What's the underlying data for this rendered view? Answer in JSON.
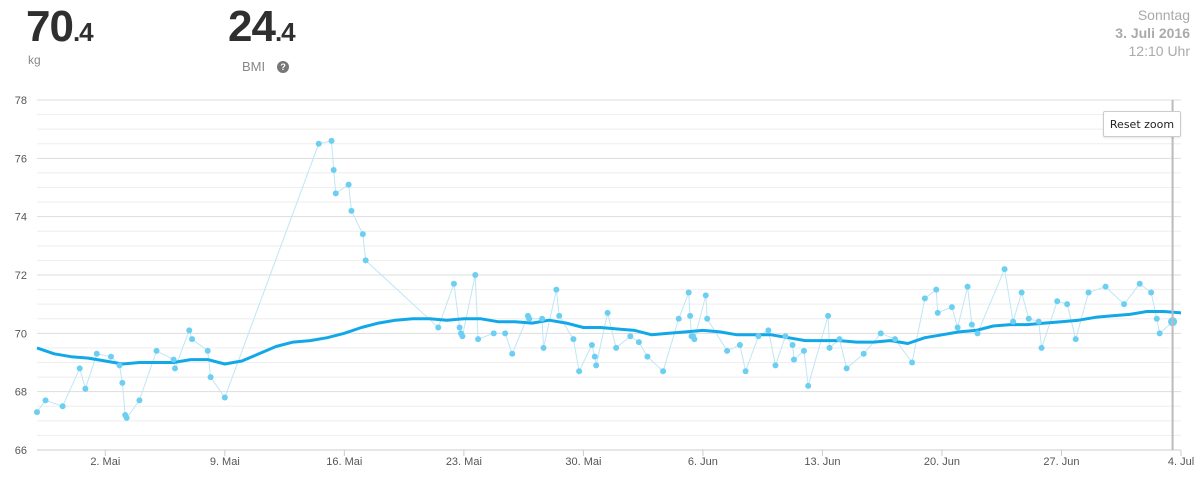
{
  "weight": {
    "int": "70",
    "dec": ".4",
    "unit": "kg"
  },
  "bmi": {
    "int": "24",
    "dec": ".4",
    "label": "BMI",
    "help_icon": "help-icon"
  },
  "date": {
    "weekday": "Sonntag",
    "date": "3. Juli 2016",
    "time": "12:10 Uhr"
  },
  "reset_zoom_label": "Reset zoom",
  "colors": {
    "points": "#6ccff2",
    "trend": "#12a8e8",
    "raw_line": "#bfe6f5",
    "grid": "#dddddd",
    "crosshair": "#bbbbbb"
  },
  "chart_data": {
    "type": "line",
    "xlabel": "",
    "ylabel": "",
    "ylim": [
      66,
      78
    ],
    "xlim": [
      "2016-04-28",
      "2016-07-04"
    ],
    "y_ticks": [
      66,
      68,
      70,
      72,
      74,
      76,
      78
    ],
    "x_ticks": [
      {
        "date": "2016-05-02",
        "label": "2. Mai"
      },
      {
        "date": "2016-05-09",
        "label": "9. Mai"
      },
      {
        "date": "2016-05-16",
        "label": "16. Mai"
      },
      {
        "date": "2016-05-23",
        "label": "23. Mai"
      },
      {
        "date": "2016-05-30",
        "label": "30. Mai"
      },
      {
        "date": "2016-06-06",
        "label": "6. Jun"
      },
      {
        "date": "2016-06-13",
        "label": "13. Jun"
      },
      {
        "date": "2016-06-20",
        "label": "20. Jun"
      },
      {
        "date": "2016-06-27",
        "label": "27. Jun"
      },
      {
        "date": "2016-07-04",
        "label": "4. Jul"
      }
    ],
    "grid": true,
    "series": [
      {
        "kind": "measurements",
        "points": [
          [
            "2016-04-28",
            67.3
          ],
          [
            "2016-04-28 12:00",
            67.7
          ],
          [
            "2016-04-29 12:00",
            67.5
          ],
          [
            "2016-04-30 12:00",
            68.8
          ],
          [
            "2016-04-30 20:00",
            68.1
          ],
          [
            "2016-05-01 12:00",
            69.3
          ],
          [
            "2016-05-02 08:00",
            69.2
          ],
          [
            "2016-05-02 20:00",
            68.9
          ],
          [
            "2016-05-03 00:00",
            68.3
          ],
          [
            "2016-05-03 04:00",
            67.2
          ],
          [
            "2016-05-03 06:00",
            67.1
          ],
          [
            "2016-05-04 00:00",
            67.7
          ],
          [
            "2016-05-05 00:00",
            69.4
          ],
          [
            "2016-05-06 00:00",
            69.1
          ],
          [
            "2016-05-06 02:00",
            68.8
          ],
          [
            "2016-05-06 22:00",
            70.1
          ],
          [
            "2016-05-07 02:00",
            69.8
          ],
          [
            "2016-05-08 00:00",
            69.4
          ],
          [
            "2016-05-08 04:00",
            68.5
          ],
          [
            "2016-05-09 00:00",
            67.8
          ],
          [
            "2016-05-14 12:00",
            76.5
          ],
          [
            "2016-05-15 06:00",
            76.6
          ],
          [
            "2016-05-15 09:00",
            75.6
          ],
          [
            "2016-05-15 12:00",
            74.8
          ],
          [
            "2016-05-16 06:00",
            75.1
          ],
          [
            "2016-05-16 10:00",
            74.2
          ],
          [
            "2016-05-17 02:00",
            73.4
          ],
          [
            "2016-05-17 06:00",
            72.5
          ],
          [
            "2016-05-21 12:00",
            70.2
          ],
          [
            "2016-05-22 10:00",
            71.7
          ],
          [
            "2016-05-22 18:00",
            70.2
          ],
          [
            "2016-05-22 20:00",
            70.0
          ],
          [
            "2016-05-22 22:00",
            69.9
          ],
          [
            "2016-05-23 16:00",
            72.0
          ],
          [
            "2016-05-23 20:00",
            69.8
          ],
          [
            "2016-05-24 18:00",
            70.0
          ],
          [
            "2016-05-25 10:00",
            70.0
          ],
          [
            "2016-05-25 20:00",
            69.3
          ],
          [
            "2016-05-26 18:00",
            70.6
          ],
          [
            "2016-05-26 20:00",
            70.5
          ],
          [
            "2016-05-27 14:00",
            70.5
          ],
          [
            "2016-05-27 16:00",
            69.5
          ],
          [
            "2016-05-28 10:00",
            71.5
          ],
          [
            "2016-05-28 14:00",
            70.6
          ],
          [
            "2016-05-29 10:00",
            69.8
          ],
          [
            "2016-05-29 18:00",
            68.7
          ],
          [
            "2016-05-30 12:00",
            69.6
          ],
          [
            "2016-05-30 16:00",
            69.2
          ],
          [
            "2016-05-30 18:00",
            68.9
          ],
          [
            "2016-05-31 10:00",
            70.7
          ],
          [
            "2016-05-31 22:00",
            69.5
          ],
          [
            "2016-06-01 18:00",
            69.9
          ],
          [
            "2016-06-02 06:00",
            69.7
          ],
          [
            "2016-06-02 18:00",
            69.2
          ],
          [
            "2016-06-03 16:00",
            68.7
          ],
          [
            "2016-06-04 14:00",
            70.5
          ],
          [
            "2016-06-05 04:00",
            71.4
          ],
          [
            "2016-06-05 06:00",
            70.6
          ],
          [
            "2016-06-05 08:00",
            69.9
          ],
          [
            "2016-06-05 10:00",
            69.9
          ],
          [
            "2016-06-05 12:00",
            69.8
          ],
          [
            "2016-06-06 04:00",
            71.3
          ],
          [
            "2016-06-06 06:00",
            70.5
          ],
          [
            "2016-06-07 10:00",
            69.4
          ],
          [
            "2016-06-08 04:00",
            69.6
          ],
          [
            "2016-06-08 12:00",
            68.7
          ],
          [
            "2016-06-09 06:00",
            69.9
          ],
          [
            "2016-06-09 20:00",
            70.1
          ],
          [
            "2016-06-10 06:00",
            68.9
          ],
          [
            "2016-06-10 20:00",
            69.9
          ],
          [
            "2016-06-11 06:00",
            69.6
          ],
          [
            "2016-06-11 08:00",
            69.1
          ],
          [
            "2016-06-11 22:00",
            69.4
          ],
          [
            "2016-06-12 04:00",
            68.2
          ],
          [
            "2016-06-13 08:00",
            70.6
          ],
          [
            "2016-06-13 10:00",
            69.5
          ],
          [
            "2016-06-14 00:00",
            69.8
          ],
          [
            "2016-06-14 10:00",
            68.8
          ],
          [
            "2016-06-15 10:00",
            69.3
          ],
          [
            "2016-06-16 10:00",
            70.0
          ],
          [
            "2016-06-17 06:00",
            69.8
          ],
          [
            "2016-06-18 06:00",
            69.0
          ],
          [
            "2016-06-19 00:00",
            71.2
          ],
          [
            "2016-06-19 16:00",
            71.5
          ],
          [
            "2016-06-19 18:00",
            70.7
          ],
          [
            "2016-06-20 14:00",
            70.9
          ],
          [
            "2016-06-20 22:00",
            70.2
          ],
          [
            "2016-06-21 12:00",
            71.6
          ],
          [
            "2016-06-21 18:00",
            70.3
          ],
          [
            "2016-06-22 02:00",
            70.0
          ],
          [
            "2016-06-23 16:00",
            72.2
          ],
          [
            "2016-06-24 04:00",
            70.4
          ],
          [
            "2016-06-24 16:00",
            71.4
          ],
          [
            "2016-06-25 02:00",
            70.5
          ],
          [
            "2016-06-25 16:00",
            70.4
          ],
          [
            "2016-06-25 20:00",
            69.5
          ],
          [
            "2016-06-26 18:00",
            71.1
          ],
          [
            "2016-06-27 08:00",
            71.0
          ],
          [
            "2016-06-27 20:00",
            69.8
          ],
          [
            "2016-06-28 14:00",
            71.4
          ],
          [
            "2016-06-29 14:00",
            71.6
          ],
          [
            "2016-06-30 16:00",
            71.0
          ],
          [
            "2016-07-01 14:00",
            71.7
          ],
          [
            "2016-07-02 06:00",
            71.4
          ],
          [
            "2016-07-02 14:00",
            70.5
          ],
          [
            "2016-07-02 18:00",
            70.0
          ],
          [
            "2016-07-03 12:10",
            70.4
          ]
        ]
      },
      {
        "kind": "trend",
        "points": [
          [
            "2016-04-28",
            69.5
          ],
          [
            "2016-04-29",
            69.3
          ],
          [
            "2016-04-30",
            69.2
          ],
          [
            "2016-05-01",
            69.15
          ],
          [
            "2016-05-02",
            69.05
          ],
          [
            "2016-05-03",
            68.95
          ],
          [
            "2016-05-04",
            69.0
          ],
          [
            "2016-05-05",
            69.0
          ],
          [
            "2016-05-06",
            69.0
          ],
          [
            "2016-05-07",
            69.1
          ],
          [
            "2016-05-08",
            69.1
          ],
          [
            "2016-05-09",
            68.95
          ],
          [
            "2016-05-10",
            69.05
          ],
          [
            "2016-05-11",
            69.3
          ],
          [
            "2016-05-12",
            69.55
          ],
          [
            "2016-05-13",
            69.7
          ],
          [
            "2016-05-14",
            69.75
          ],
          [
            "2016-05-15",
            69.85
          ],
          [
            "2016-05-16",
            70.0
          ],
          [
            "2016-05-17",
            70.2
          ],
          [
            "2016-05-18",
            70.35
          ],
          [
            "2016-05-19",
            70.45
          ],
          [
            "2016-05-20",
            70.5
          ],
          [
            "2016-05-21",
            70.5
          ],
          [
            "2016-05-22",
            70.45
          ],
          [
            "2016-05-23",
            70.5
          ],
          [
            "2016-05-24",
            70.5
          ],
          [
            "2016-05-25",
            70.4
          ],
          [
            "2016-05-26",
            70.4
          ],
          [
            "2016-05-27",
            70.35
          ],
          [
            "2016-05-28",
            70.45
          ],
          [
            "2016-05-29",
            70.35
          ],
          [
            "2016-05-30",
            70.2
          ],
          [
            "2016-05-31",
            70.2
          ],
          [
            "2016-06-01",
            70.15
          ],
          [
            "2016-06-02",
            70.1
          ],
          [
            "2016-06-03",
            69.95
          ],
          [
            "2016-06-04",
            70.0
          ],
          [
            "2016-06-05",
            70.05
          ],
          [
            "2016-06-06",
            70.1
          ],
          [
            "2016-06-07",
            70.05
          ],
          [
            "2016-06-08",
            69.95
          ],
          [
            "2016-06-09",
            69.95
          ],
          [
            "2016-06-10",
            69.95
          ],
          [
            "2016-06-11",
            69.85
          ],
          [
            "2016-06-12",
            69.75
          ],
          [
            "2016-06-13",
            69.75
          ],
          [
            "2016-06-14",
            69.75
          ],
          [
            "2016-06-15",
            69.7
          ],
          [
            "2016-06-16",
            69.7
          ],
          [
            "2016-06-17",
            69.75
          ],
          [
            "2016-06-18",
            69.65
          ],
          [
            "2016-06-19",
            69.85
          ],
          [
            "2016-06-20",
            69.95
          ],
          [
            "2016-06-21",
            70.05
          ],
          [
            "2016-06-22",
            70.1
          ],
          [
            "2016-06-23",
            70.25
          ],
          [
            "2016-06-24",
            70.3
          ],
          [
            "2016-06-25",
            70.3
          ],
          [
            "2016-06-26",
            70.35
          ],
          [
            "2016-06-27",
            70.4
          ],
          [
            "2016-06-28",
            70.45
          ],
          [
            "2016-06-29",
            70.55
          ],
          [
            "2016-06-30",
            70.6
          ],
          [
            "2016-07-01",
            70.65
          ],
          [
            "2016-07-02",
            70.75
          ],
          [
            "2016-07-03",
            70.75
          ],
          [
            "2016-07-04",
            70.7
          ]
        ]
      }
    ]
  }
}
